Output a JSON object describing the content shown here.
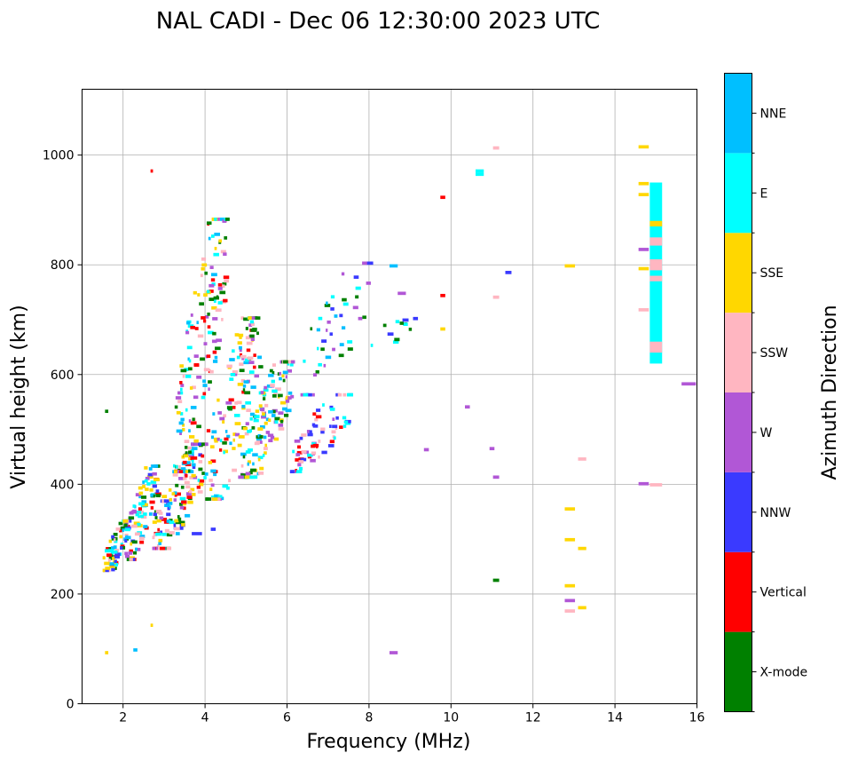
{
  "chart_data": {
    "type": "scatter",
    "title": "NAL CADI - Dec 06 12:30:00 2023 UTC",
    "xlabel": "Frequency (MHz)",
    "ylabel": "Virtual height (km)",
    "xlim": [
      1,
      16
    ],
    "ylim": [
      0,
      1120
    ],
    "xticks": [
      2,
      4,
      6,
      8,
      10,
      12,
      14,
      16
    ],
    "yticks": [
      0,
      200,
      400,
      600,
      800,
      1000
    ],
    "xtick_labels": [
      "2",
      "4",
      "6",
      "8",
      "10",
      "12",
      "14",
      "16"
    ],
    "ytick_labels": [
      "0",
      "200",
      "400",
      "600",
      "800",
      "1000"
    ],
    "grid": true,
    "colorbar": {
      "label": "Azimuth Direction",
      "categories": [
        {
          "name": "X-mode",
          "color": "#008000"
        },
        {
          "name": "Vertical",
          "color": "#ff0000"
        },
        {
          "name": "NNW",
          "color": "#3a3aff"
        },
        {
          "name": "W",
          "color": "#b157d6"
        },
        {
          "name": "SSW",
          "color": "#ffb6c1"
        },
        {
          "name": "SSE",
          "color": "#ffd700"
        },
        {
          "name": "E",
          "color": "#00ffff"
        },
        {
          "name": "NNE",
          "color": "#00bfff"
        }
      ]
    },
    "clusters": [
      {
        "fmin": 1.5,
        "fmax": 2.1,
        "hmin": 240,
        "hmax": 330,
        "n": 70,
        "cats": [
          "Vertical",
          "NNW",
          "E",
          "NNE",
          "SSE",
          "X-mode",
          "SSW"
        ]
      },
      {
        "fmin": 2.0,
        "fmax": 2.8,
        "hmin": 260,
        "hmax": 430,
        "n": 95,
        "cats": [
          "SSW",
          "SSE",
          "Vertical",
          "NNE",
          "E",
          "X-mode",
          "NNW",
          "W"
        ]
      },
      {
        "fmin": 2.7,
        "fmax": 4.0,
        "hmin": 280,
        "hmax": 470,
        "n": 150,
        "cats": [
          "E",
          "NNE",
          "X-mode",
          "Vertical",
          "SSE",
          "W",
          "NNW",
          "SSW"
        ]
      },
      {
        "fmin": 3.2,
        "fmax": 4.5,
        "hmin": 420,
        "hmax": 880,
        "n": 160,
        "cats": [
          "X-mode",
          "Vertical",
          "W",
          "SSW",
          "E",
          "NNE",
          "SSE"
        ]
      },
      {
        "fmin": 4.0,
        "fmax": 5.3,
        "hmin": 370,
        "hmax": 700,
        "n": 140,
        "cats": [
          "SSE",
          "E",
          "X-mode",
          "SSW",
          "W",
          "NNE",
          "Vertical"
        ]
      },
      {
        "fmin": 4.8,
        "fmax": 6.1,
        "hmin": 410,
        "hmax": 620,
        "n": 150,
        "cats": [
          "E",
          "NNE",
          "SSE",
          "SSW",
          "W",
          "X-mode"
        ]
      },
      {
        "fmin": 6.0,
        "fmax": 7.5,
        "hmin": 420,
        "hmax": 560,
        "n": 70,
        "cats": [
          "W",
          "SSW",
          "NNW",
          "E",
          "Vertical"
        ]
      },
      {
        "fmin": 6.3,
        "fmax": 8.0,
        "hmin": 560,
        "hmax": 800,
        "n": 45,
        "cats": [
          "NNW",
          "W",
          "E",
          "X-mode",
          "NNE"
        ]
      },
      {
        "fmin": 8.0,
        "fmax": 9.2,
        "hmin": 640,
        "hmax": 720,
        "n": 12,
        "cats": [
          "NNW",
          "W",
          "E",
          "X-mode",
          "NNE"
        ]
      }
    ],
    "points": [
      {
        "f": 15.0,
        "h": 620,
        "h2": 950,
        "cat": "E",
        "w": 0.3
      },
      {
        "f": 15.0,
        "h": 640,
        "h2": 660,
        "cat": "SSW",
        "w": 0.3
      },
      {
        "f": 15.0,
        "h": 770,
        "h2": 780,
        "cat": "SSW",
        "w": 0.3
      },
      {
        "f": 15.0,
        "h": 790,
        "h2": 810,
        "cat": "SSW",
        "w": 0.3
      },
      {
        "f": 15.0,
        "h": 835,
        "h2": 850,
        "cat": "SSW",
        "w": 0.3
      },
      {
        "f": 15.0,
        "h": 870,
        "h2": 880,
        "cat": "SSE",
        "w": 0.3
      },
      {
        "f": 14.7,
        "h": 1012,
        "cat": "SSE",
        "w": 0.25
      },
      {
        "f": 14.7,
        "h": 945,
        "cat": "SSE",
        "w": 0.25
      },
      {
        "f": 14.7,
        "h": 925,
        "cat": "SSE",
        "w": 0.25
      },
      {
        "f": 14.7,
        "h": 825,
        "cat": "W",
        "w": 0.25
      },
      {
        "f": 14.7,
        "h": 790,
        "cat": "SSE",
        "w": 0.25
      },
      {
        "f": 14.7,
        "h": 715,
        "cat": "SSW",
        "w": 0.25
      },
      {
        "f": 14.7,
        "h": 398,
        "cat": "W",
        "w": 0.25
      },
      {
        "f": 15.0,
        "h": 396,
        "cat": "SSW",
        "w": 0.3
      },
      {
        "f": 15.8,
        "h": 580,
        "cat": "W",
        "w": 0.35
      },
      {
        "f": 12.9,
        "h": 795,
        "cat": "SSE",
        "w": 0.25
      },
      {
        "f": 12.9,
        "h": 352,
        "cat": "SSE",
        "w": 0.25
      },
      {
        "f": 12.9,
        "h": 296,
        "cat": "SSE",
        "w": 0.25
      },
      {
        "f": 12.9,
        "h": 212,
        "cat": "SSE",
        "w": 0.25
      },
      {
        "f": 12.9,
        "h": 185,
        "cat": "W",
        "w": 0.25
      },
      {
        "f": 12.9,
        "h": 166,
        "cat": "SSW",
        "w": 0.25
      },
      {
        "f": 13.2,
        "h": 280,
        "cat": "SSE",
        "w": 0.2
      },
      {
        "f": 13.2,
        "h": 172,
        "cat": "SSE",
        "w": 0.2
      },
      {
        "f": 13.2,
        "h": 443,
        "cat": "SSW",
        "w": 0.2
      },
      {
        "f": 11.1,
        "h": 1010,
        "cat": "SSW",
        "w": 0.15
      },
      {
        "f": 11.1,
        "h": 738,
        "cat": "SSW",
        "w": 0.15
      },
      {
        "f": 11.1,
        "h": 410,
        "cat": "W",
        "w": 0.15
      },
      {
        "f": 11.1,
        "h": 222,
        "cat": "X-mode",
        "w": 0.15
      },
      {
        "f": 11.4,
        "h": 783,
        "cat": "NNW",
        "w": 0.15
      },
      {
        "f": 11.0,
        "h": 462,
        "cat": "W",
        "w": 0.12
      },
      {
        "f": 10.7,
        "h": 968,
        "cat": "E",
        "w": 0.2
      },
      {
        "f": 10.7,
        "h": 962,
        "cat": "E",
        "w": 0.2
      },
      {
        "f": 10.4,
        "h": 538,
        "cat": "W",
        "w": 0.12
      },
      {
        "f": 9.8,
        "h": 920,
        "cat": "Vertical",
        "w": 0.12
      },
      {
        "f": 9.8,
        "h": 741,
        "cat": "Vertical",
        "w": 0.12
      },
      {
        "f": 9.8,
        "h": 680,
        "cat": "SSE",
        "w": 0.12
      },
      {
        "f": 9.4,
        "h": 460,
        "cat": "W",
        "w": 0.12
      },
      {
        "f": 8.6,
        "h": 795,
        "cat": "NNE",
        "w": 0.2
      },
      {
        "f": 8.6,
        "h": 90,
        "cat": "W",
        "w": 0.2
      },
      {
        "f": 8.8,
        "h": 745,
        "cat": "W",
        "w": 0.2
      },
      {
        "f": 2.7,
        "h": 968,
        "cat": "Vertical",
        "w": 0.06
      },
      {
        "f": 2.7,
        "h": 140,
        "cat": "SSE",
        "w": 0.06
      },
      {
        "f": 2.3,
        "h": 95,
        "cat": "NNE",
        "w": 0.1
      },
      {
        "f": 1.6,
        "h": 90,
        "cat": "SSE",
        "w": 0.08
      },
      {
        "f": 1.6,
        "h": 530,
        "cat": "X-mode",
        "w": 0.08
      },
      {
        "f": 4.1,
        "h": 873,
        "cat": "X-mode",
        "w": 0.12
      },
      {
        "f": 4.5,
        "h": 846,
        "cat": "X-mode",
        "w": 0.08
      },
      {
        "f": 3.8,
        "h": 307,
        "cat": "NNW",
        "w": 0.25
      },
      {
        "f": 4.2,
        "h": 315,
        "cat": "NNW",
        "w": 0.12
      }
    ]
  }
}
